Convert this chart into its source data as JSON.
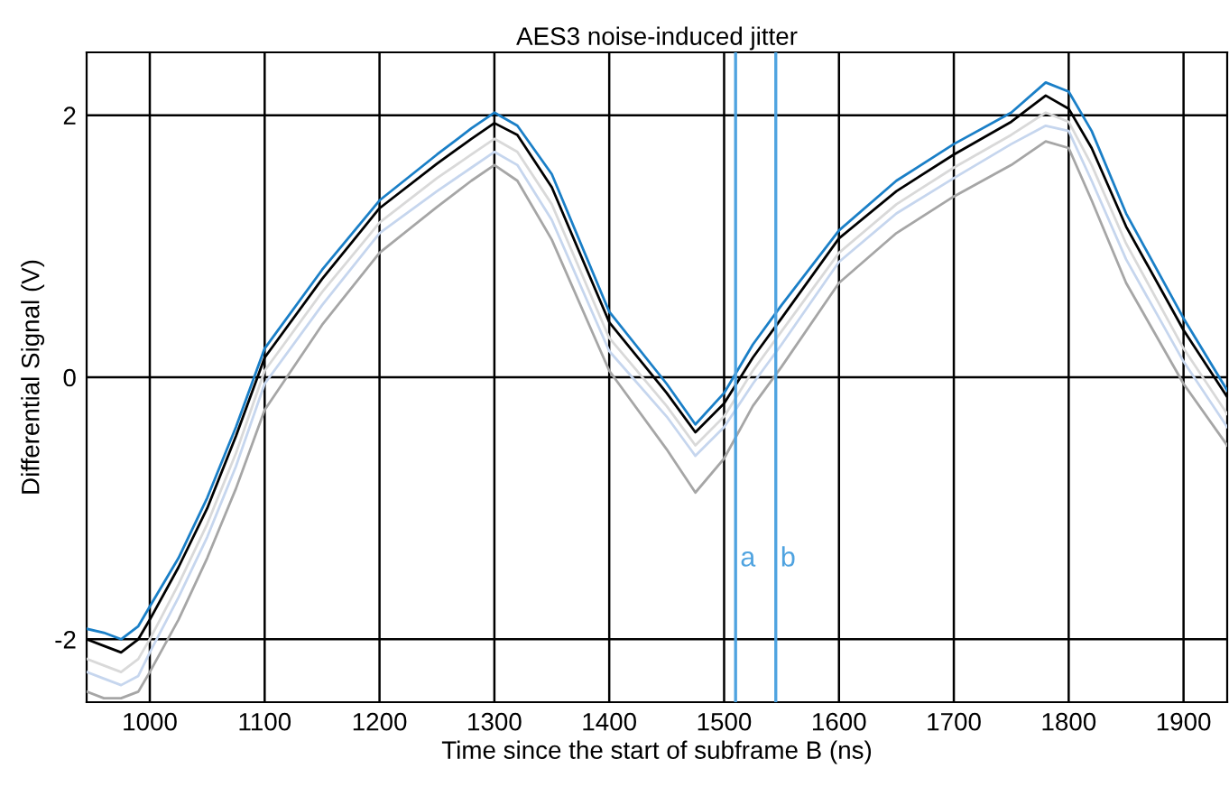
{
  "chart_data": {
    "type": "line",
    "title": "AES3 noise-induced jitter",
    "xlabel": "Time since the start of subframe B (ns)",
    "ylabel": "Differential Signal (V)",
    "x": [
      945,
      960,
      975,
      990,
      1000,
      1025,
      1050,
      1075,
      1100,
      1150,
      1200,
      1250,
      1280,
      1300,
      1320,
      1350,
      1400,
      1450,
      1475,
      1500,
      1525,
      1550,
      1600,
      1650,
      1700,
      1750,
      1780,
      1800,
      1820,
      1850,
      1900,
      1938
    ],
    "series": [
      {
        "color": "#a6a6a6",
        "values": [
          -2.4,
          -2.45,
          -2.45,
          -2.4,
          -2.25,
          -1.85,
          -1.38,
          -0.85,
          -0.25,
          0.4,
          0.95,
          1.3,
          1.5,
          1.62,
          1.5,
          1.05,
          0.05,
          -0.55,
          -0.88,
          -0.62,
          -0.22,
          0.08,
          0.72,
          1.1,
          1.38,
          1.62,
          1.8,
          1.75,
          1.35,
          0.72,
          -0.05,
          -0.52
        ]
      },
      {
        "color": "#c6d6ee",
        "values": [
          -2.25,
          -2.3,
          -2.35,
          -2.28,
          -2.1,
          -1.68,
          -1.22,
          -0.68,
          -0.05,
          0.55,
          1.1,
          1.42,
          1.6,
          1.72,
          1.62,
          1.2,
          0.2,
          -0.3,
          -0.6,
          -0.38,
          -0.05,
          0.25,
          0.88,
          1.25,
          1.52,
          1.78,
          1.92,
          1.88,
          1.5,
          0.9,
          0.12,
          -0.38
        ]
      },
      {
        "color": "#d9d9d9",
        "values": [
          -2.15,
          -2.2,
          -2.25,
          -2.15,
          -2.0,
          -1.58,
          -1.12,
          -0.58,
          0.05,
          0.65,
          1.18,
          1.52,
          1.7,
          1.82,
          1.72,
          1.32,
          0.3,
          -0.22,
          -0.52,
          -0.3,
          0.05,
          0.35,
          0.95,
          1.32,
          1.6,
          1.85,
          2.02,
          1.95,
          1.62,
          1.02,
          0.22,
          -0.28
        ]
      },
      {
        "color": "#000000",
        "values": [
          -2.0,
          -2.05,
          -2.1,
          -2.0,
          -1.85,
          -1.45,
          -1.0,
          -0.45,
          0.15,
          0.75,
          1.29,
          1.63,
          1.82,
          1.94,
          1.85,
          1.45,
          0.42,
          -0.12,
          -0.42,
          -0.2,
          0.15,
          0.45,
          1.06,
          1.42,
          1.7,
          1.95,
          2.15,
          2.05,
          1.75,
          1.15,
          0.36,
          -0.15
        ]
      },
      {
        "color": "#1a7fc7",
        "values": [
          -1.92,
          -1.95,
          -2.0,
          -1.9,
          -1.75,
          -1.38,
          -0.92,
          -0.38,
          0.22,
          0.82,
          1.35,
          1.7,
          1.9,
          2.02,
          1.92,
          1.55,
          0.5,
          -0.05,
          -0.36,
          -0.12,
          0.25,
          0.55,
          1.12,
          1.5,
          1.78,
          2.02,
          2.25,
          2.18,
          1.88,
          1.25,
          0.45,
          -0.1
        ]
      }
    ],
    "ref_lines": [
      {
        "axis": "x",
        "value": 1510,
        "label": "a",
        "color": "#4fa3e0"
      },
      {
        "axis": "x",
        "value": 1545,
        "label": "b",
        "color": "#4fa3e0"
      }
    ],
    "xlim": [
      945,
      1938
    ],
    "xticks": [
      1000,
      1100,
      1200,
      1300,
      1400,
      1500,
      1600,
      1700,
      1800,
      1900
    ],
    "ylim": [
      -2.48,
      2.48
    ],
    "yticks": [
      -2,
      0,
      2
    ],
    "grid": true,
    "marker": "none",
    "line_style": "solid"
  }
}
